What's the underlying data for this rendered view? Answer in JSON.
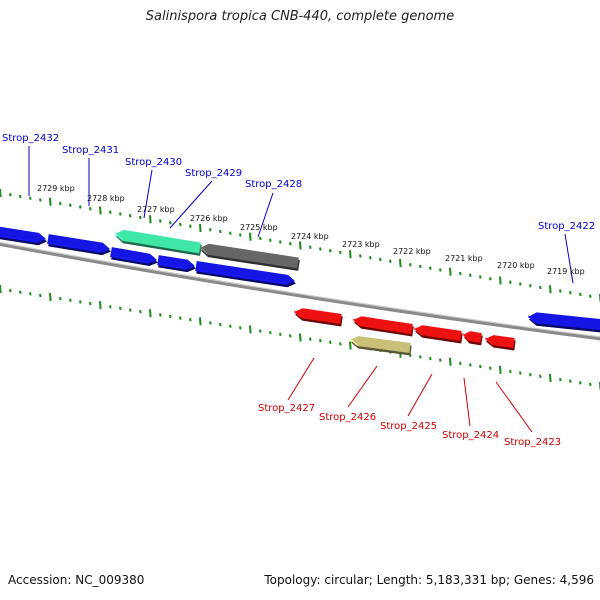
{
  "title": "Salinispora tropica CNB-440, complete genome",
  "footer": {
    "accession": "Accession: NC_009380",
    "summary": "Topology: circular; Length: 5,183,331 bp; Genes: 4,596"
  },
  "colors": {
    "background": "#ffffff",
    "backbone": "#8a8a8a",
    "tick": "#1a8a1a",
    "forward_label": "#0000cc",
    "reverse_label": "#cc0000",
    "gene_blue": "#1515e6",
    "gene_red": "#ee1111",
    "gene_green": "#40e8a8",
    "gene_gray": "#666666",
    "gene_khaki": "#c8c078"
  },
  "scale": {
    "unit": "kbp",
    "labels": [
      "2729 kbp",
      "2728 kbp",
      "2727 kbp",
      "2726 kbp",
      "2725 kbp",
      "2724 kbp",
      "2723 kbp",
      "2722 kbp",
      "2721 kbp",
      "2720 kbp",
      "2719 kbp"
    ]
  },
  "forward_genes": [
    {
      "id": "Strop_2432",
      "color": "gene_blue"
    },
    {
      "id": "Strop_2431",
      "color": "gene_blue"
    },
    {
      "id": "Strop_2430",
      "color": "gene_green"
    },
    {
      "id": "Strop_2429",
      "color": "gene_blue"
    },
    {
      "id": "Strop_2428",
      "color": "gene_gray"
    },
    {
      "id": "Strop_2422",
      "color": "gene_blue"
    }
  ],
  "reverse_genes": [
    {
      "id": "Strop_2427",
      "color": "gene_red"
    },
    {
      "id": "Strop_2426",
      "color": "gene_khaki"
    },
    {
      "id": "Strop_2425",
      "color": "gene_red"
    },
    {
      "id": "Strop_2424",
      "color": "gene_red"
    },
    {
      "id": "Strop_2423",
      "color": "gene_red"
    }
  ]
}
